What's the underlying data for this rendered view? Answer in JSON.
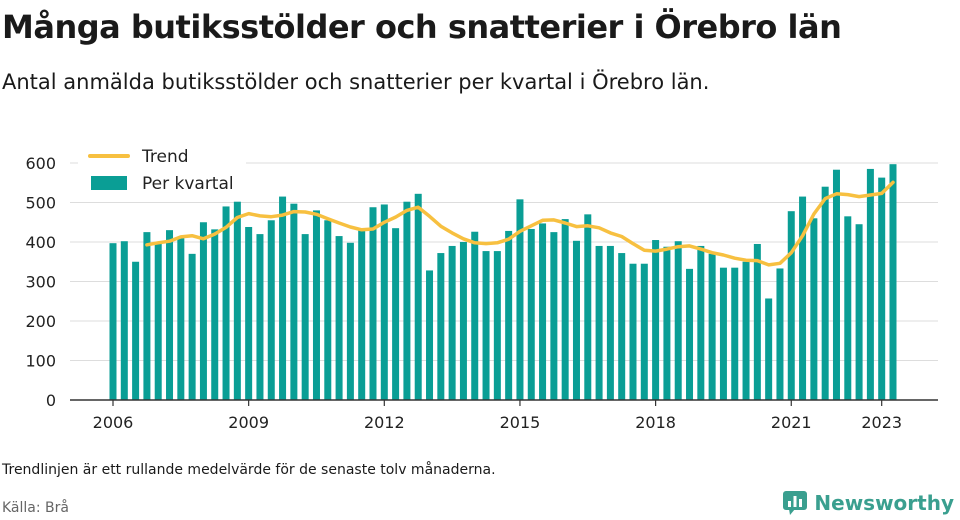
{
  "title": "Många butiksstölder och snatterier i Örebro län",
  "subtitle": "Antal anmälda butiksstölder och snatterier per kvartal i Örebro län.",
  "note": "Trendlinjen är ett rullande medelvärde för de senaste tolv månaderna.",
  "source": "Källa: Brå",
  "brand": {
    "name": "Newsworthy",
    "icon": "newsworthy-logo-icon",
    "color": "#3a9f8f"
  },
  "colors": {
    "bars": "#0a9e95",
    "trend": "#f7c040",
    "grid": "#dddddd",
    "axis": "#333333"
  },
  "chart_data": {
    "type": "bar",
    "ylim": [
      0,
      600
    ],
    "yticks": [
      0,
      100,
      200,
      300,
      400,
      500,
      600
    ],
    "xticks": [
      "2006",
      "2009",
      "2012",
      "2015",
      "2018",
      "2021",
      "2023"
    ],
    "grid": true,
    "legend": {
      "position": "top-left",
      "entries": [
        {
          "label": "Trend",
          "kind": "line"
        },
        {
          "label": "Per kvartal",
          "kind": "bar"
        }
      ]
    },
    "series": [
      {
        "name": "Per kvartal",
        "type": "bar",
        "values": [
          397,
          402,
          350,
          425,
          400,
          430,
          410,
          370,
          450,
          432,
          490,
          502,
          438,
          420,
          455,
          515,
          497,
          420,
          480,
          455,
          415,
          398,
          430,
          488,
          495,
          435,
          502,
          522,
          328,
          372,
          390,
          400,
          426,
          377,
          377,
          428,
          508,
          433,
          447,
          425,
          458,
          403,
          470,
          390,
          390,
          372,
          345,
          345,
          405,
          388,
          402,
          332,
          390,
          370,
          335,
          335,
          350,
          395,
          257,
          333,
          478,
          515,
          460,
          540,
          583,
          465,
          445,
          585,
          563,
          597
        ]
      },
      {
        "name": "Trend",
        "type": "line",
        "values": [
          null,
          null,
          null,
          393,
          398,
          402,
          413,
          416,
          408,
          420,
          437,
          462,
          472,
          466,
          464,
          468,
          477,
          476,
          470,
          459,
          448,
          438,
          431,
          433,
          450,
          463,
          480,
          488,
          465,
          440,
          423,
          408,
          398,
          396,
          398,
          407,
          427,
          441,
          455,
          456,
          448,
          439,
          441,
          436,
          423,
          414,
          396,
          379,
          377,
          382,
          388,
          390,
          382,
          373,
          367,
          359,
          354,
          353,
          342,
          346,
          373,
          416,
          471,
          510,
          522,
          520,
          515,
          519,
          523,
          551
        ]
      }
    ]
  }
}
